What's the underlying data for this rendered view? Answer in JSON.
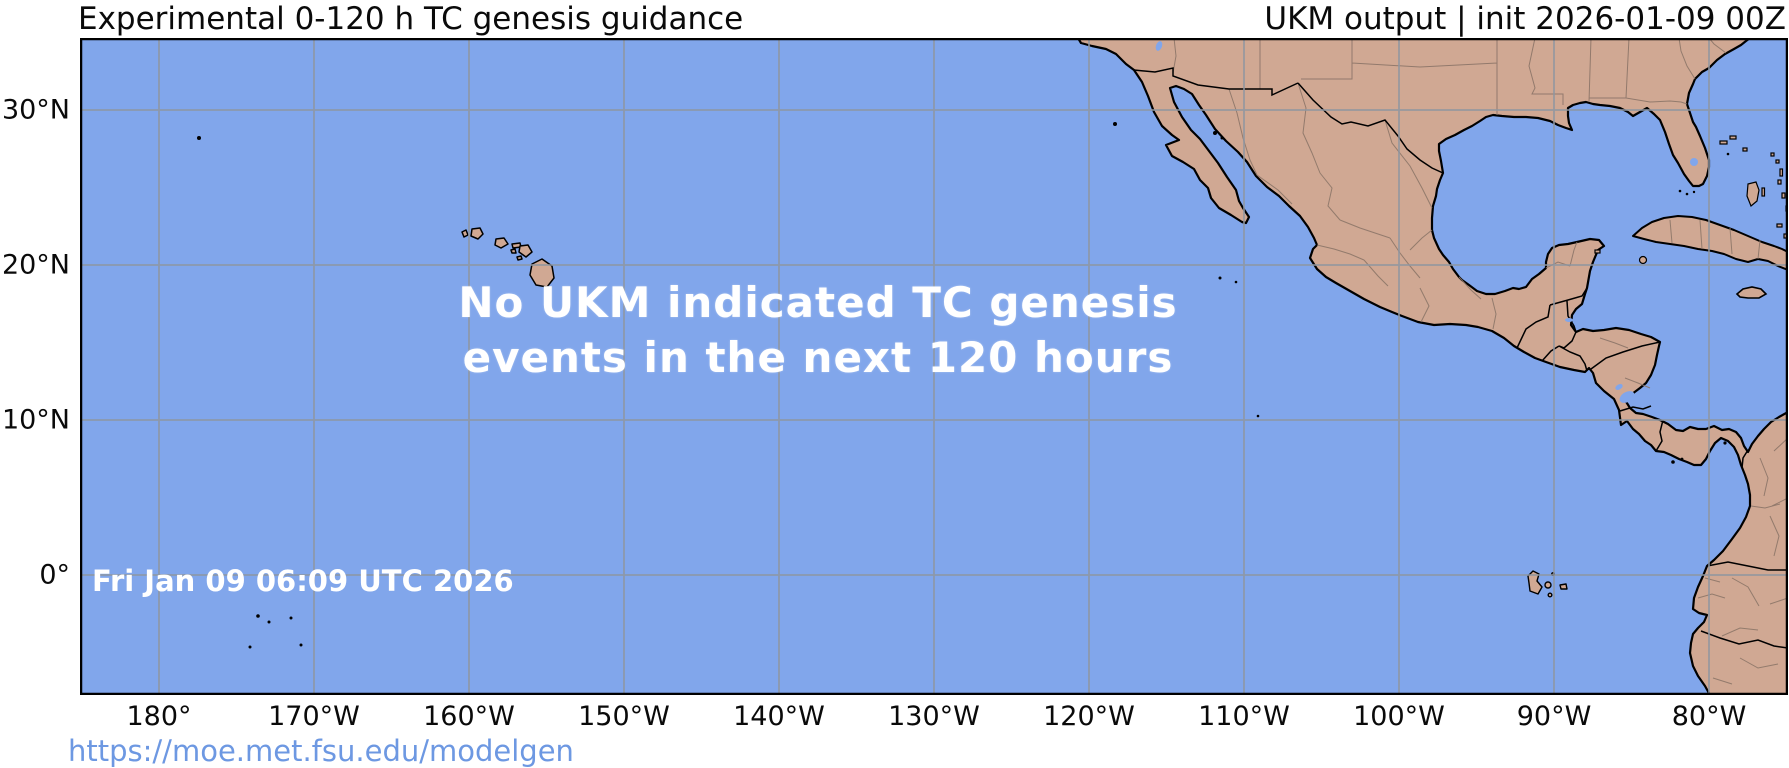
{
  "header": {
    "title_left": "Experimental 0-120 h TC genesis guidance",
    "title_right": "UKM output | init 2026-01-09 00Z"
  },
  "map": {
    "overlay": {
      "line1": "No UKM indicated TC genesis",
      "line2": "events in the next 120 hours"
    },
    "valid_time_label": "Fri Jan 09 06:09 UTC 2026",
    "axes": {
      "x_tick_labels": [
        "180°",
        "170°W",
        "160°W",
        "150°W",
        "140°W",
        "130°W",
        "120°W",
        "110°W",
        "100°W",
        "90°W",
        "80°W"
      ],
      "y_tick_labels": [
        "30°N",
        "20°N",
        "10°N",
        "0°"
      ]
    },
    "colors": {
      "ocean": "#81a6eb",
      "land": "#d0a893",
      "coastline": "#000000",
      "gridline": "#8f96a1",
      "admin_border": "#8c7568",
      "message_text": "#ffffff",
      "link_text": "#6d98e2"
    }
  },
  "footer": {
    "link_url": "https://moe.met.fsu.edu/modelgen"
  }
}
